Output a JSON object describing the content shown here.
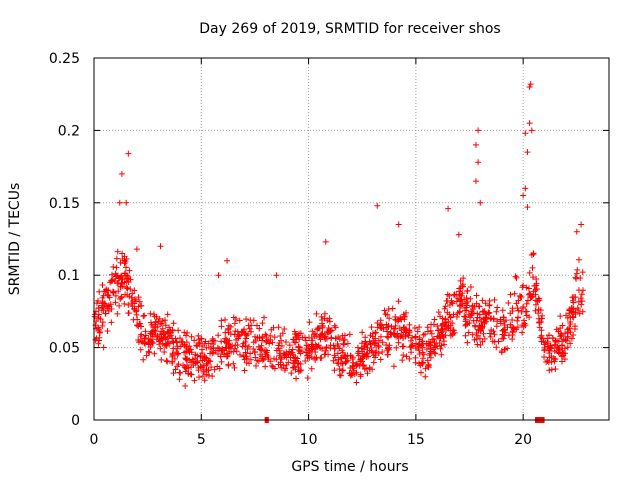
{
  "chart_data": {
    "type": "scatter",
    "title": "Day 269 of 2019, SRMTID for receiver shos",
    "xlabel": "GPS time / hours",
    "ylabel": "SRMTID / TECUs",
    "xlim": [
      0,
      24
    ],
    "ylim": [
      0,
      0.25
    ],
    "xticks": [
      0,
      5,
      10,
      15,
      20
    ],
    "yticks": [
      0,
      0.05,
      0.1,
      0.15,
      0.2,
      0.25
    ],
    "xtick_labels": [
      "0",
      "5",
      "10",
      "15",
      "20"
    ],
    "ytick_labels": [
      "0",
      "0.05",
      "0.1",
      "0.15",
      "0.2",
      "0.25"
    ],
    "grid": true,
    "series_color": "#ff0000",
    "trend": [
      [
        0.0,
        0.065
      ],
      [
        0.5,
        0.078
      ],
      [
        1.0,
        0.095
      ],
      [
        1.5,
        0.1
      ],
      [
        2.0,
        0.07
      ],
      [
        2.5,
        0.058
      ],
      [
        3.0,
        0.06
      ],
      [
        3.5,
        0.055
      ],
      [
        4.0,
        0.045
      ],
      [
        5.0,
        0.042
      ],
      [
        6.0,
        0.05
      ],
      [
        7.0,
        0.055
      ],
      [
        8.0,
        0.05
      ],
      [
        9.0,
        0.045
      ],
      [
        10.0,
        0.048
      ],
      [
        10.8,
        0.06
      ],
      [
        11.5,
        0.045
      ],
      [
        12.2,
        0.038
      ],
      [
        13.0,
        0.05
      ],
      [
        14.0,
        0.065
      ],
      [
        14.8,
        0.055
      ],
      [
        15.5,
        0.048
      ],
      [
        16.3,
        0.06
      ],
      [
        17.0,
        0.085
      ],
      [
        17.5,
        0.075
      ],
      [
        18.0,
        0.07
      ],
      [
        18.5,
        0.07
      ],
      [
        19.0,
        0.06
      ],
      [
        20.0,
        0.08
      ],
      [
        20.5,
        0.1
      ],
      [
        21.0,
        0.05
      ],
      [
        21.5,
        0.048
      ],
      [
        22.0,
        0.06
      ],
      [
        22.5,
        0.085
      ],
      [
        22.8,
        0.09
      ]
    ],
    "spikes": [
      [
        1.3,
        0.17
      ],
      [
        1.5,
        0.15
      ],
      [
        1.6,
        0.184
      ],
      [
        1.2,
        0.15
      ],
      [
        3.1,
        0.12
      ],
      [
        10.8,
        0.123
      ],
      [
        13.2,
        0.148
      ],
      [
        14.2,
        0.135
      ],
      [
        16.5,
        0.146
      ],
      [
        17.0,
        0.128
      ],
      [
        17.9,
        0.2
      ],
      [
        17.8,
        0.19
      ],
      [
        17.9,
        0.178
      ],
      [
        17.8,
        0.165
      ],
      [
        18.0,
        0.15
      ],
      [
        20.1,
        0.198
      ],
      [
        20.2,
        0.185
      ],
      [
        20.3,
        0.205
      ],
      [
        20.4,
        0.2
      ],
      [
        20.3,
        0.23
      ],
      [
        20.35,
        0.232
      ],
      [
        20.0,
        0.155
      ],
      [
        20.1,
        0.16
      ],
      [
        20.2,
        0.147
      ],
      [
        22.7,
        0.135
      ],
      [
        22.5,
        0.13
      ],
      [
        2.0,
        0.118
      ],
      [
        5.8,
        0.1
      ],
      [
        6.2,
        0.11
      ],
      [
        8.5,
        0.1
      ]
    ],
    "gaps_marked_at_zero": [
      [
        8.0,
        8.1
      ],
      [
        20.6,
        20.95
      ]
    ]
  }
}
